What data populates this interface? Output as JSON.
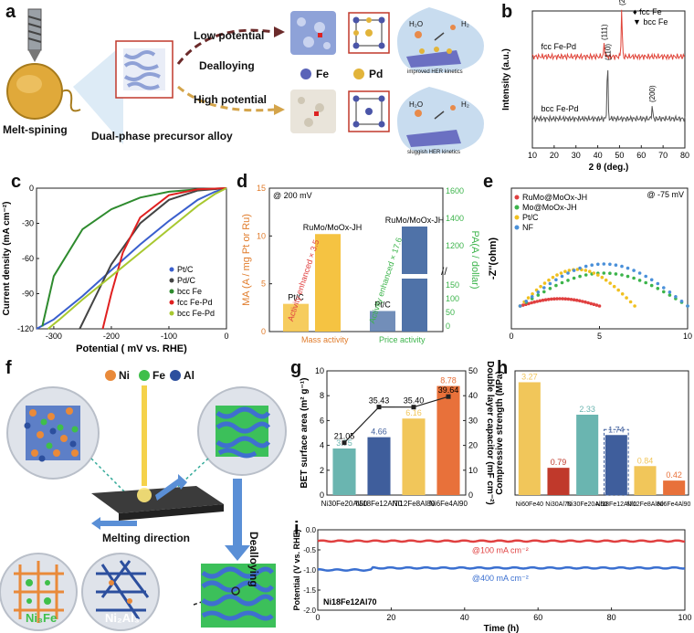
{
  "figure": {
    "panel_labels": [
      "a",
      "b",
      "c",
      "d",
      "e",
      "f",
      "g",
      "h",
      "i"
    ]
  },
  "panel_a": {
    "melt_spinning": "Melt-spining",
    "precursor": "Dual-phase precursor alloy",
    "low_potential": "Low potential",
    "dealloying": "Dealloying",
    "high_potential": "High potential",
    "legend_fe": "Fe",
    "legend_pd": "Pd",
    "improved": "improved HER kinetics",
    "sluggish": "sluggish HER kinetics",
    "h2o": "H₂O",
    "h2": "H₂"
  },
  "chart_data": [
    {
      "id": "b",
      "type": "line",
      "title": "",
      "xlabel": "2 θ (deg.)",
      "ylabel": "Intensity (a.u.)",
      "xlim": [
        10,
        80
      ],
      "xticks": [
        10,
        20,
        30,
        40,
        50,
        60,
        70,
        80
      ],
      "legend": [
        "♦ fcc Fe",
        "▼ bcc Fe"
      ],
      "series": [
        {
          "name": "fcc Fe-Pd",
          "color": "#e0453a",
          "peaks": [
            {
              "x": 43,
              "label": "(111)"
            },
            {
              "x": 51,
              "label": "(200)"
            }
          ]
        },
        {
          "name": "bcc Fe-Pd",
          "color": "#555555",
          "peaks": [
            {
              "x": 44.5,
              "label": "(110)"
            },
            {
              "x": 65,
              "label": "(200)"
            }
          ]
        }
      ]
    },
    {
      "id": "c",
      "type": "line",
      "xlabel": "Potential ( mV vs. RHE)",
      "ylabel": "Current density (mA cm⁻²)",
      "xlim": [
        -330,
        0
      ],
      "ylim": [
        -120,
        0
      ],
      "xticks": [
        -300,
        -200,
        -100,
        0
      ],
      "yticks": [
        0,
        -30,
        -60,
        -90,
        -120
      ],
      "series": [
        {
          "name": "Pt/C",
          "color": "#3a5fcd",
          "x": [
            0,
            -20,
            -50,
            -100,
            -150,
            -200,
            -250,
            -300,
            -330
          ],
          "y": [
            0,
            -3,
            -10,
            -28,
            -48,
            -70,
            -92,
            -112,
            -120
          ]
        },
        {
          "name": "Pd/C",
          "color": "#444444",
          "x": [
            0,
            -50,
            -100,
            -150,
            -200,
            -230,
            -255
          ],
          "y": [
            0,
            -2,
            -10,
            -30,
            -65,
            -95,
            -120
          ]
        },
        {
          "name": "bcc Fe",
          "color": "#2e8b2e",
          "x": [
            0,
            -50,
            -100,
            -150,
            -200,
            -250,
            -300,
            -320
          ],
          "y": [
            0,
            -1,
            -3,
            -8,
            -18,
            -35,
            -75,
            -118
          ]
        },
        {
          "name": "fcc Fe-Pd",
          "color": "#e02020",
          "x": [
            0,
            -50,
            -100,
            -150,
            -180,
            -200,
            -215
          ],
          "y": [
            0,
            -1,
            -6,
            -25,
            -55,
            -90,
            -120
          ]
        },
        {
          "name": "bcc Fe-Pd",
          "color": "#a8c830",
          "x": [
            0,
            -20,
            -50,
            -100,
            -150,
            -200,
            -250,
            -290,
            -310
          ],
          "y": [
            0,
            -5,
            -15,
            -35,
            -55,
            -75,
            -95,
            -112,
            -120
          ]
        }
      ]
    },
    {
      "id": "d",
      "type": "bar",
      "note": "@ 200 mV",
      "ylabel_left": "MA (A / mg Pt or Ru)",
      "ylabel_right": "PA(A / dollar)",
      "ylim_left": [
        0,
        15
      ],
      "yticks_left": [
        0,
        5,
        10,
        15
      ],
      "yticks_right_high": [
        1600,
        1400,
        1200
      ],
      "yticks_right_low": [
        150,
        100,
        50,
        0
      ],
      "groups": [
        {
          "name": "Mass activity",
          "bars": [
            {
              "label": "Pt/C",
              "value": 2.9
            },
            {
              "label": "RuMo/MoOx-JH",
              "value": 10.2
            }
          ],
          "annotation": "Activity enhanced × 3.5"
        },
        {
          "name": "Price activity",
          "bars": [
            {
              "label": "Pt/C",
              "value": 75
            },
            {
              "label": "RuMo/MoOx-JH",
              "value": 1320
            }
          ],
          "annotation": "Activity enhanced × 17.6"
        }
      ]
    },
    {
      "id": "e",
      "type": "scatter",
      "note": "@ -75 mV",
      "xlabel": "",
      "ylabel": "-Z''(ohm)",
      "xlim": [
        0,
        10
      ],
      "xticks": [
        0,
        5,
        10
      ],
      "series": [
        {
          "name": "RuMo@MoOx-JH",
          "color": "#e04040"
        },
        {
          "name": "Mo@MoOx-JH",
          "color": "#3cb44b"
        },
        {
          "name": "Pt/C",
          "color": "#f0c020"
        },
        {
          "name": "NF",
          "color": "#4a90d9"
        }
      ]
    },
    {
      "id": "g",
      "type": "bar",
      "ylabel_left": "BET surface area (m² g⁻¹)",
      "ylabel_right": "Double layer capacitor (mF cm⁻²)",
      "ylim_left": [
        0,
        10
      ],
      "yticks_left": [
        0,
        2,
        4,
        6,
        8,
        10
      ],
      "ylim_right": [
        0,
        50
      ],
      "yticks_right": [
        0,
        10,
        20,
        30,
        40,
        50
      ],
      "categories": [
        "Ni30Fe20Al50",
        "Ni18Fe12Al70",
        "Ni12Fe8Al80",
        "Ni6Fe4Al90"
      ],
      "bet_values": [
        3.75,
        4.66,
        6.16,
        8.78
      ],
      "capacitance_values": [
        21.05,
        35.43,
        35.4,
        39.64
      ],
      "bar_colors": [
        "#6ab5b0",
        "#3f5e9c",
        "#f1c65a",
        "#e8713a"
      ]
    },
    {
      "id": "h",
      "type": "bar",
      "ylabel": "Compressive strength (MPa)",
      "categories": [
        "Ni60Fe40",
        "Ni30Al70",
        "Ni30Fe20Al50",
        "Ni18Fe12Al70",
        "Ni12Fe8Al80",
        "Ni6Fe4Al90"
      ],
      "values": [
        3.27,
        0.79,
        2.33,
        1.74,
        0.84,
        0.42
      ],
      "bar_colors": [
        "#f1c65a",
        "#c0392b",
        "#6ab5b0",
        "#3f5e9c",
        "#f1c65a",
        "#e8713a"
      ]
    },
    {
      "id": "i",
      "type": "line",
      "xlabel": "Time (h)",
      "ylabel": "Potential (V vs. RHE)",
      "xlim": [
        0,
        100
      ],
      "xticks": [
        0,
        20,
        40,
        60,
        80,
        100
      ],
      "ylim": [
        -2.0,
        0.0
      ],
      "yticks": [
        0.0,
        -0.5,
        -1.0,
        -1.5,
        -2.0
      ],
      "sample": "Ni18Fe12Al70",
      "series": [
        {
          "name": "@100 mA cm⁻²",
          "color": "#e04040",
          "value": -0.28
        },
        {
          "name": "@400 mA cm⁻²",
          "color": "#3a6fd0",
          "value": -0.95
        }
      ]
    }
  ],
  "panel_f": {
    "legend_ni": "Ni",
    "legend_fe": "Fe",
    "legend_al": "Al",
    "melting_direction": "Melting direction",
    "dealloying": "Dealloying",
    "phase1": "Ni₃Fe",
    "phase2": "Ni₂Al₃"
  }
}
